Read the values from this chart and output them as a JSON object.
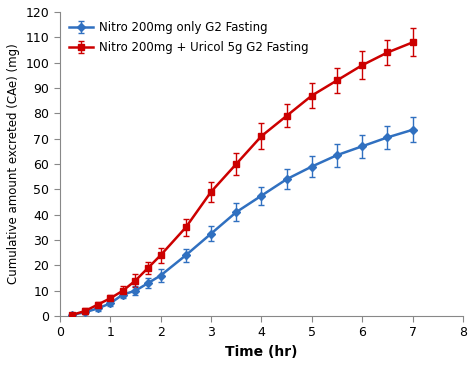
{
  "title": "",
  "xlabel": "Time (hr)",
  "ylabel": "Cumulative amount excreted (CAe) (mg)",
  "xlim": [
    0,
    8
  ],
  "ylim": [
    0,
    120
  ],
  "xticks": [
    0,
    1,
    2,
    3,
    4,
    5,
    6,
    7,
    8
  ],
  "yticks": [
    0,
    10,
    20,
    30,
    40,
    50,
    60,
    70,
    80,
    90,
    100,
    110,
    120
  ],
  "blue_series": {
    "label": "Nitro 200mg only G2 Fasting",
    "color": "#3070c0",
    "marker": "D",
    "x": [
      0.25,
      0.5,
      0.75,
      1.0,
      1.25,
      1.5,
      1.75,
      2.0,
      2.5,
      3.0,
      3.5,
      4.0,
      4.5,
      5.0,
      5.5,
      6.0,
      6.5,
      7.0
    ],
    "y": [
      0.5,
      1.5,
      3.0,
      5.0,
      8.5,
      10.0,
      13.0,
      16.0,
      24.0,
      32.5,
      41.0,
      47.5,
      54.0,
      59.0,
      63.5,
      67.0,
      70.5,
      73.5
    ],
    "yerr": [
      0.5,
      0.8,
      1.0,
      1.2,
      1.5,
      1.8,
      2.0,
      2.5,
      2.5,
      3.0,
      3.5,
      3.5,
      4.0,
      4.0,
      4.5,
      4.5,
      4.5,
      5.0
    ]
  },
  "red_series": {
    "label": "Nitro 200mg + Uricol 5g G2 Fasting",
    "color": "#cc0000",
    "marker": "s",
    "x": [
      0.25,
      0.5,
      0.75,
      1.0,
      1.25,
      1.5,
      1.75,
      2.0,
      2.5,
      3.0,
      3.5,
      4.0,
      4.5,
      5.0,
      5.5,
      6.0,
      6.5,
      7.0
    ],
    "y": [
      0.5,
      2.0,
      4.5,
      7.0,
      10.0,
      14.0,
      19.0,
      24.0,
      35.0,
      49.0,
      60.0,
      71.0,
      79.0,
      87.0,
      93.0,
      99.0,
      104.0,
      108.0
    ],
    "yerr": [
      0.5,
      1.0,
      1.2,
      1.5,
      2.0,
      2.5,
      2.5,
      3.0,
      3.5,
      4.0,
      4.5,
      5.0,
      4.5,
      5.0,
      5.0,
      5.5,
      5.0,
      5.5
    ]
  },
  "legend_fontsize": 8.5,
  "tick_fontsize": 9,
  "label_fontsize": 10,
  "background_color": "#ffffff"
}
